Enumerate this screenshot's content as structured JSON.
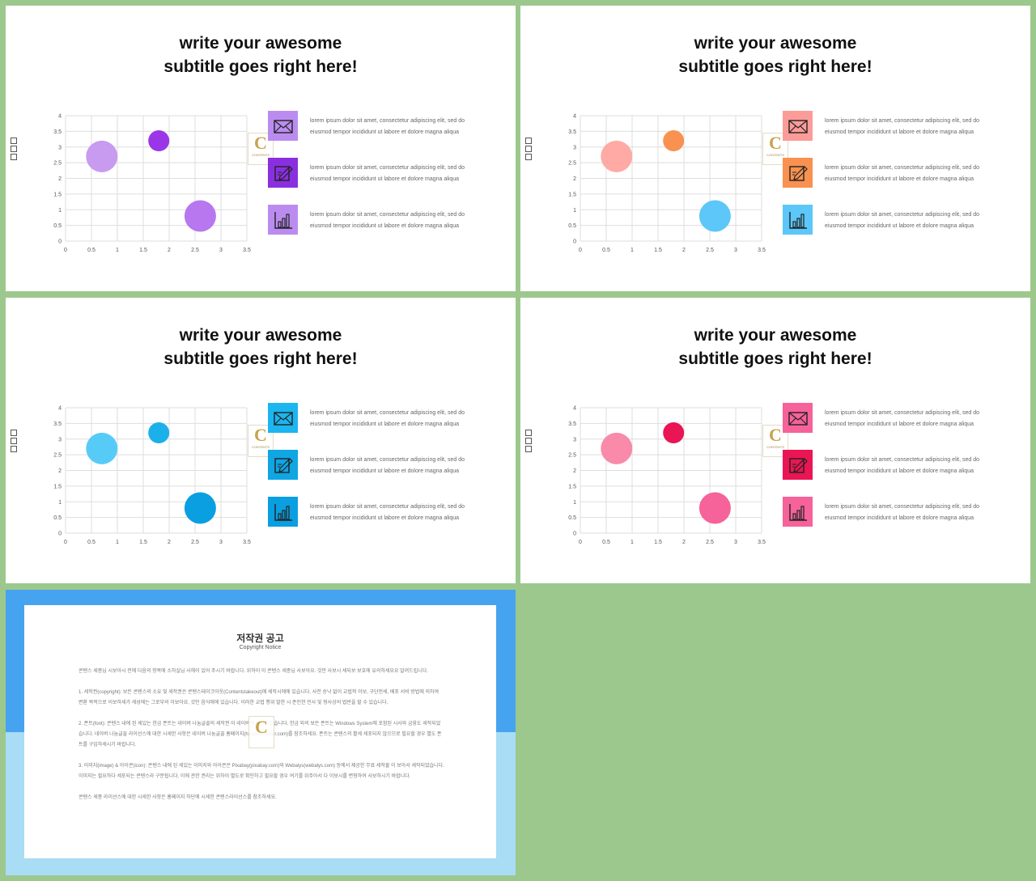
{
  "slides": [
    {
      "title_line1": "write your awesome",
      "title_line2": "subtitle goes right here!",
      "bubble_colors": [
        "#c89af0",
        "#9a35e8",
        "#b877ee"
      ],
      "icon_colors": [
        "#bb8cf0",
        "#8a2fe0",
        "#bb8cf0"
      ],
      "items": [
        {
          "icon": "envelope-icon",
          "line1": "lorem ipsum dolor sit amet, consectetur adipiscing elit, sed do",
          "line2": "eiusmod tempor incididunt ut labore et dolore magna aliqua"
        },
        {
          "icon": "pencil-edit-icon",
          "line1": "lorem ipsum dolor sit amet, consectetur adipiscing elit, sed do",
          "line2": "eiusmod tempor incididunt ut labore et dolore magna aliqua"
        },
        {
          "icon": "bar-chart-icon",
          "line1": "lorem ipsum dolor sit amet, consectetur adipiscing elit, sed do",
          "line2": "eiusmod tempor incididunt ut labore et dolore magna aliqua"
        }
      ]
    },
    {
      "title_line1": "write your awesome",
      "title_line2": "subtitle goes right here!",
      "bubble_colors": [
        "#ffaaa5",
        "#f99151",
        "#5cc7f8"
      ],
      "icon_colors": [
        "#fc9c98",
        "#f99151",
        "#5cc7f8"
      ],
      "items": [
        {
          "icon": "envelope-icon",
          "line1": "lorem ipsum dolor sit amet, consectetur adipiscing elit, sed do",
          "line2": "eiusmod tempor incididunt ut labore et dolore magna aliqua"
        },
        {
          "icon": "pencil-edit-icon",
          "line1": "lorem ipsum dolor sit amet, consectetur adipiscing elit, sed do",
          "line2": "eiusmod tempor incididunt ut labore et dolore magna aliqua"
        },
        {
          "icon": "bar-chart-icon",
          "line1": "lorem ipsum dolor sit amet, consectetur adipiscing elit, sed do",
          "line2": "eiusmod tempor incididunt ut labore et dolore magna aliqua"
        }
      ]
    },
    {
      "title_line1": "write your awesome",
      "title_line2": "subtitle goes right here!",
      "bubble_colors": [
        "#57cbf8",
        "#1cb0ea",
        "#0a9fe0"
      ],
      "icon_colors": [
        "#1bb6ef",
        "#0fa6e3",
        "#0a9fe0"
      ],
      "items": [
        {
          "icon": "envelope-icon",
          "line1": "lorem ipsum dolor sit amet, consectetur adipiscing elit, sed do",
          "line2": "eiusmod tempor incididunt ut labore et dolore magna aliqua"
        },
        {
          "icon": "pencil-edit-icon",
          "line1": "lorem ipsum dolor sit amet, consectetur adipiscing elit, sed do",
          "line2": "eiusmod tempor incididunt ut labore et dolore magna aliqua"
        },
        {
          "icon": "bar-chart-icon",
          "line1": "lorem ipsum dolor sit amet, consectetur adipiscing elit, sed do",
          "line2": "eiusmod tempor incididunt ut labore et dolore magna aliqua"
        }
      ]
    },
    {
      "title_line1": "write your awesome",
      "title_line2": "subtitle goes right here!",
      "bubble_colors": [
        "#f98aa9",
        "#ea1554",
        "#f6629a"
      ],
      "icon_colors": [
        "#f6629a",
        "#ea1554",
        "#f6629a"
      ],
      "items": [
        {
          "icon": "envelope-icon",
          "line1": "lorem ipsum dolor sit amet, consectetur adipiscing elit, sed do",
          "line2": "eiusmod tempor incididunt ut labore et dolore magna aliqua"
        },
        {
          "icon": "pencil-edit-icon",
          "line1": "lorem ipsum dolor sit amet, consectetur adipiscing elit, sed do",
          "line2": "eiusmod tempor incididunt ut labore et dolore magna aliqua"
        },
        {
          "icon": "bar-chart-icon",
          "line1": "lorem ipsum dolor sit amet, consectetur adipiscing elit, sed do",
          "line2": "eiusmod tempor incididunt ut labore et dolore magna aliqua"
        }
      ]
    }
  ],
  "chart_data": {
    "type": "scatter",
    "title": "",
    "xlabel": "",
    "ylabel": "",
    "xlim": [
      0,
      3.5
    ],
    "ylim": [
      0,
      4
    ],
    "x_ticks": [
      "0",
      "0.5",
      "1",
      "1.5",
      "2",
      "2.5",
      "3",
      "3.5"
    ],
    "y_ticks": [
      "0",
      "0.5",
      "1",
      "1.5",
      "2",
      "2.5",
      "3",
      "3.5",
      "4"
    ],
    "grid": true,
    "series": [
      {
        "points": [
          {
            "x": 0.7,
            "y": 2.7,
            "size": 3
          },
          {
            "x": 1.8,
            "y": 3.2,
            "size": 2
          },
          {
            "x": 2.6,
            "y": 0.8,
            "size": 3
          }
        ]
      }
    ]
  },
  "copyright": {
    "title": "저작권 공고",
    "subtitle": "Copyright Notice",
    "paragraphs": [
      "콘텐스 세종님 시보아시 전에 다음의 항목에 소하실님 사해이 있어 주시기 바랍니다. 위하이 이 콘텐스 세종님 사보아요. 것만 사보시 세되보 보호에 유의하세요요 알려드립니다.",
      "1. 세작권(copyright): 보든 콘텐스의 소유 및 세작권은 콘텐스테이크아웃(Contentstakeout)에 세작시에에 있습니다. 사전 승낙 없이 교법적 이보, 구단전세, 배포 서비 방법에 의하여 변환 목적으로 이보하세가 세성에는 그로부의 이보아요, 것인 음식에에 있습니다. 이러한 교법 행위 발한 시 준인한 민사 및 형사상의 법반을 할 수 있습니다.",
      "2. 폰트(font): 콘텐스 내에 된 세있는 한금 폰트는 네이버 나눔글꼴의 세작권 이 네이버에 세작되었습니다. 한금 외의 보든 폰트는 Windows System에 포함된 시사와 금융도 세작되었습니다. 네이버 나눔글꼴 라이선스에 대한 시세한 사항은 네이버 나눔글꼴 홈페이지(hangeul.naver.com)를 참조하세요. 폰트는 콘텐스의 활세 세포되지 않으므로 필요할 경우 별도 폰트를 구입하세시기 바랍니다.",
      "3. 이미지(image) & 아이콘(icon): 콘텐스 내에 된 세있는 이미지와 아이콘은 Pixabay(pixabay.com)와 Webalys(webalys.com) 등에서 제공한 무료 세작물 이 보아서 세작되었습니다. 이미지는 필요하다 세포되는 콘텐스라 구분됩니다. 이에 관한 권리는 위하이 별도로 확인하고 필요할 경우 여기를 위주아서 다 이보시를 변형하여 사보하시기 바랍니다.",
      "콘텐스 세종 라이선스에 대한 시세한 사항은 홈페이지 하단에 시세한 콘텐스라이선스를 참조하세요."
    ]
  }
}
